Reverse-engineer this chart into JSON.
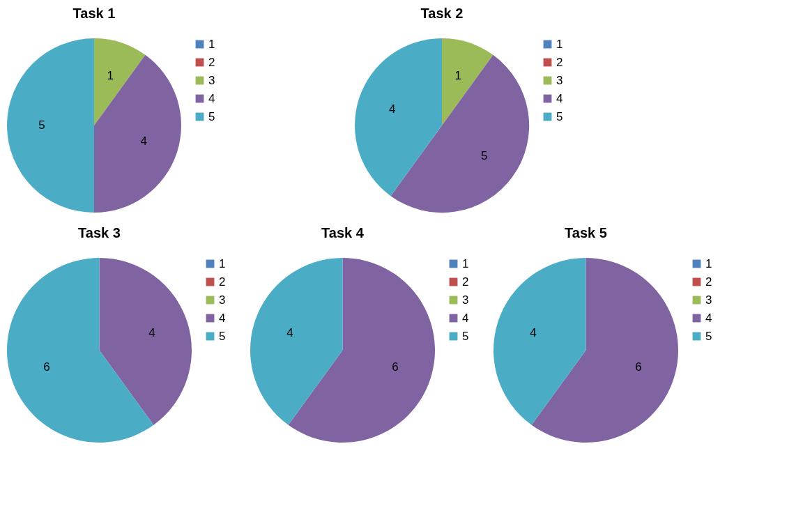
{
  "chart_data": [
    {
      "type": "pie",
      "title": "Task 1",
      "categories": [
        "1",
        "2",
        "3",
        "4",
        "5"
      ],
      "values": [
        0,
        0,
        1,
        4,
        5
      ],
      "value_labels": [
        null,
        null,
        "1",
        "4",
        "5"
      ],
      "colors": [
        "#4f81bd",
        "#c0504d",
        "#9bbb59",
        "#8064a2",
        "#4bacc6"
      ],
      "legend": "right"
    },
    {
      "type": "pie",
      "title": "Task 2",
      "categories": [
        "1",
        "2",
        "3",
        "4",
        "5"
      ],
      "values": [
        0,
        0,
        1,
        5,
        4
      ],
      "value_labels": [
        null,
        null,
        "1",
        "5",
        "4"
      ],
      "colors": [
        "#4f81bd",
        "#c0504d",
        "#9bbb59",
        "#8064a2",
        "#4bacc6"
      ],
      "legend": "right"
    },
    {
      "type": "pie",
      "title": "Task 3",
      "categories": [
        "1",
        "2",
        "3",
        "4",
        "5"
      ],
      "values": [
        0,
        0,
        0,
        4,
        6
      ],
      "value_labels": [
        null,
        null,
        null,
        "4",
        "6"
      ],
      "colors": [
        "#4f81bd",
        "#c0504d",
        "#9bbb59",
        "#8064a2",
        "#4bacc6"
      ],
      "legend": "right"
    },
    {
      "type": "pie",
      "title": "Task 4",
      "categories": [
        "1",
        "2",
        "3",
        "4",
        "5"
      ],
      "values": [
        0,
        0,
        0,
        6,
        4
      ],
      "value_labels": [
        null,
        null,
        null,
        "6",
        "4"
      ],
      "colors": [
        "#4f81bd",
        "#c0504d",
        "#9bbb59",
        "#8064a2",
        "#4bacc6"
      ],
      "legend": "right"
    },
    {
      "type": "pie",
      "title": "Task 5",
      "categories": [
        "1",
        "2",
        "3",
        "4",
        "5"
      ],
      "values": [
        0,
        0,
        0,
        6,
        4
      ],
      "value_labels": [
        null,
        null,
        null,
        "6",
        "4"
      ],
      "colors": [
        "#4f81bd",
        "#c0504d",
        "#9bbb59",
        "#8064a2",
        "#4bacc6"
      ],
      "legend": "right"
    }
  ]
}
